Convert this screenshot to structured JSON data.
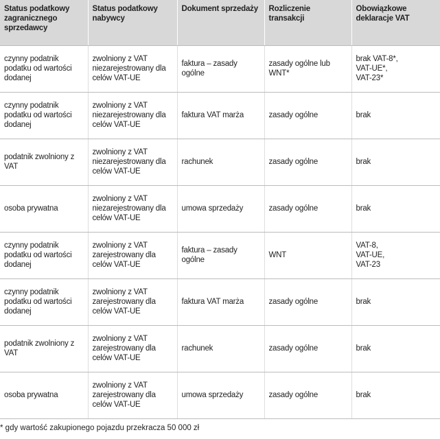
{
  "table": {
    "header": [
      "Status podatkowy zagranicznego sprzedawcy",
      "Status podatkowy nabywcy",
      "Dokument sprzedaży",
      "Rozliczenie transakcji",
      "Obowiązkowe deklaracje VAT"
    ],
    "rows": [
      [
        "czynny podatnik podatku od wartości dodanej",
        "zwolniony z VAT niezarejestrowany dla celów VAT-UE",
        "faktura – zasady ogólne",
        "zasady ogólne lub WNT*",
        "brak VAT-8*,\nVAT-UE*,\nVAT-23*"
      ],
      [
        "czynny podatnik podatku od wartości dodanej",
        "zwolniony z VAT niezarejestrowany dla celów VAT-UE",
        "faktura VAT marża",
        "zasady ogólne",
        "brak"
      ],
      [
        "podatnik zwolniony z VAT",
        "zwolniony z VAT niezarejestrowany dla celów VAT-UE",
        "rachunek",
        "zasady ogólne",
        "brak"
      ],
      [
        "osoba prywatna",
        "zwolniony z VAT niezarejestrowany dla celów VAT-UE",
        "umowa sprzedaży",
        "zasady ogólne",
        "brak"
      ],
      [
        "czynny podatnik podatku od wartości dodanej",
        "zwolniony z VAT zarejestrowany dla celów VAT-UE",
        "faktura – zasady ogólne",
        "WNT",
        "VAT-8,\nVAT-UE,\nVAT-23"
      ],
      [
        "czynny podatnik podatku od wartości dodanej",
        "zwolniony z VAT zarejestrowany dla celów VAT-UE",
        "faktura VAT marża",
        "zasady ogólne",
        "brak"
      ],
      [
        "podatnik zwolniony z VAT",
        "zwolniony z VAT zarejestrowany dla celów VAT-UE",
        "rachunek",
        "zasady ogólne",
        "brak"
      ],
      [
        "osoba prywatna",
        "zwolniony z VAT zarejestrowany dla celów VAT-UE",
        "umowa sprzedaży",
        "zasady ogólne",
        "brak"
      ]
    ]
  },
  "footnote": "* gdy wartość zakupionego pojazdu przekracza 50 000 zł"
}
